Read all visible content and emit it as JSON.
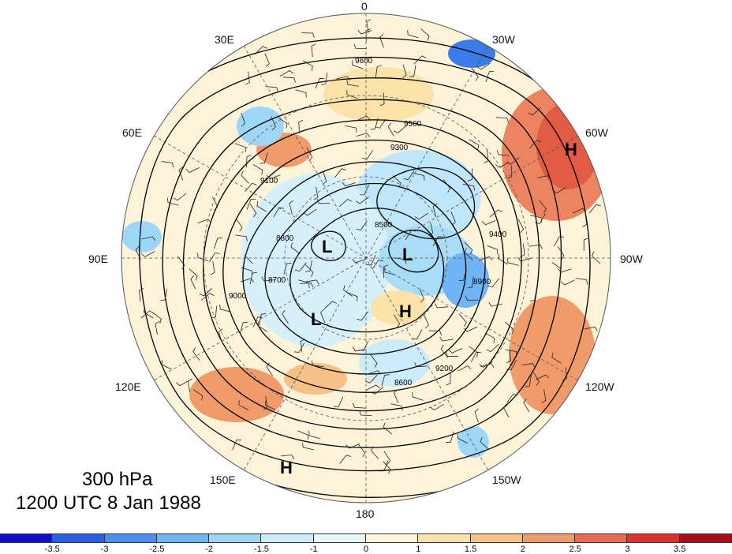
{
  "title": {
    "level": "300 hPa",
    "time": "1200 UTC 8 Jan 1988"
  },
  "longitude_labels": [
    "0",
    "30W",
    "60W",
    "90W",
    "120W",
    "150W",
    "180",
    "150E",
    "120E",
    "90E",
    "60E",
    "30E"
  ],
  "contour_labels": [
    "9600",
    "9500",
    "9400",
    "9300",
    "9200",
    "9100",
    "9000",
    "8900",
    "8800",
    "8700",
    "8600",
    "8500"
  ],
  "centers": [
    {
      "type": "H",
      "where": "east Atlantic / near 60W"
    },
    {
      "type": "L",
      "where": "Siberia"
    },
    {
      "type": "L",
      "where": "Arctic Canada"
    },
    {
      "type": "L",
      "where": "East Siberia"
    },
    {
      "type": "H",
      "where": "North Pole region"
    },
    {
      "type": "H",
      "where": "North Pacific"
    }
  ],
  "colorbar": {
    "ticks": [
      "-3.5",
      "-3",
      "-2.5",
      "-2",
      "-1.5",
      "-1",
      "0",
      "1",
      "1.5",
      "2",
      "2.5",
      "3",
      "3.5"
    ],
    "colors": [
      "#1010c8",
      "#2a5fe0",
      "#4a8ff0",
      "#6fb4f5",
      "#9ed6f8",
      "#ccecfb",
      "#e8f7fc",
      "#fdf6dc",
      "#fbe2a8",
      "#f6c087",
      "#f19a6a",
      "#e96a4e",
      "#d9342f",
      "#a80f1e"
    ]
  }
}
